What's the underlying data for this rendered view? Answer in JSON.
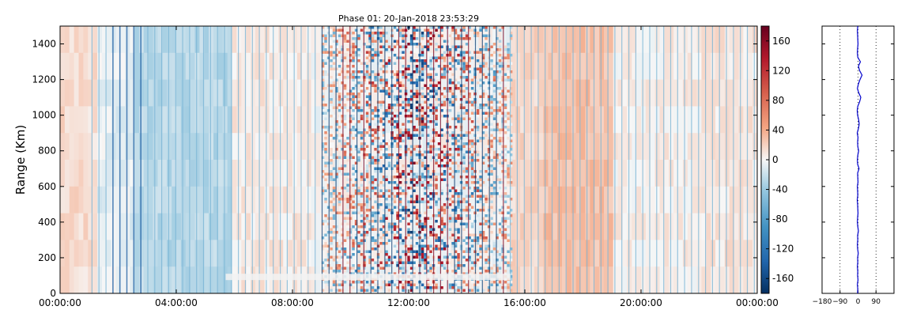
{
  "chart_data": [
    {
      "type": "heatmap",
      "title": "Phase 01: 20-Jan-2018 23:53:29",
      "xlabel": "",
      "ylabel": "Range (Km)",
      "x_ticks": [
        "00:00:00",
        "04:00:00",
        "08:00:00",
        "12:00:00",
        "16:00:00",
        "20:00:00",
        "00:00:00"
      ],
      "x_range_hours": [
        0,
        24
      ],
      "y_ticks": [
        0,
        200,
        400,
        600,
        800,
        1000,
        1200,
        1400
      ],
      "ylim": [
        0,
        1500
      ],
      "colorbar": {
        "ticks": [
          -160,
          -120,
          -80,
          -40,
          0,
          40,
          80,
          120,
          160
        ],
        "range": [
          -180,
          180
        ],
        "colors": {
          "low": "#053061",
          "mid": "#f7f7f7",
          "high": "#67001f"
        }
      }
    },
    {
      "type": "line",
      "title": "",
      "xlabel": "",
      "ylabel": "",
      "x_ticks": [
        -180,
        -90,
        0,
        90
      ],
      "xlim": [
        -180,
        180
      ],
      "ylim": [
        0,
        1500
      ],
      "grid": true,
      "line_color": "#0000cc",
      "series": [
        {
          "x": [
            -2,
            -1,
            -3,
            0,
            -2,
            -1,
            -3,
            -1,
            -2,
            1,
            -2,
            -3,
            -1,
            -2,
            2,
            -1,
            -3,
            -2,
            0,
            -1,
            -2,
            -4,
            -1,
            -2,
            -3,
            0,
            -1,
            -2,
            5,
            -2,
            -3,
            -1,
            3,
            -1,
            -2,
            0,
            -4,
            2,
            6,
            3,
            -2,
            -4,
            -1,
            8,
            14,
            4,
            -3,
            2,
            10,
            20,
            8,
            2,
            12,
            -1,
            -3,
            -2,
            0,
            -1,
            -2,
            -3,
            -1
          ],
          "y": [
            0,
            25,
            50,
            75,
            100,
            125,
            150,
            175,
            200,
            225,
            250,
            275,
            300,
            325,
            350,
            375,
            400,
            425,
            450,
            475,
            500,
            525,
            550,
            575,
            600,
            625,
            650,
            675,
            700,
            725,
            750,
            775,
            800,
            825,
            850,
            875,
            900,
            925,
            950,
            975,
            1000,
            1025,
            1050,
            1075,
            1100,
            1125,
            1150,
            1175,
            1200,
            1225,
            1250,
            1275,
            1300,
            1325,
            1350,
            1375,
            1400,
            1425,
            1450,
            1475,
            1500
          ]
        }
      ]
    }
  ]
}
